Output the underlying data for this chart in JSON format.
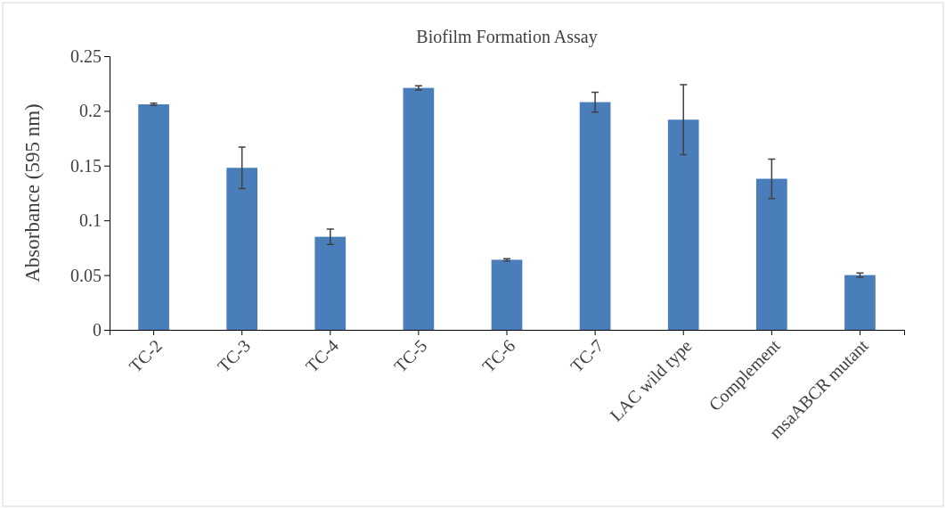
{
  "chart_data": {
    "type": "bar",
    "title": "Biofilm Formation Assay",
    "ylabel": "Absorbance (595 nm)",
    "categories": [
      "TC-2",
      "TC-3",
      "TC-4",
      "TC-5",
      "TC-6",
      "TC-7",
      "LAC wild type",
      "Complement",
      "msaABCR mutant"
    ],
    "values": [
      0.206,
      0.148,
      0.085,
      0.221,
      0.064,
      0.208,
      0.192,
      0.138,
      0.05
    ],
    "errors": [
      0.001,
      0.019,
      0.007,
      0.002,
      0.001,
      0.009,
      0.032,
      0.018,
      0.002
    ],
    "color": "#4a7ebb",
    "ylim": [
      0,
      0.25
    ],
    "yticks": [
      0,
      0.05,
      0.1,
      0.15,
      0.2,
      0.25
    ],
    "grid": false
  }
}
